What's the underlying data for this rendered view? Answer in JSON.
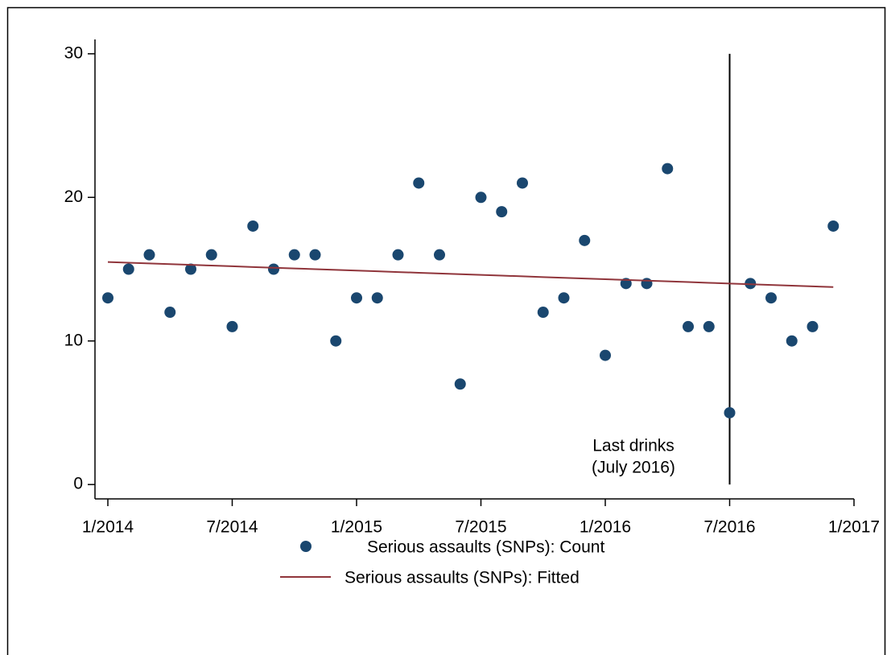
{
  "chart_data": {
    "type": "scatter",
    "x": [
      "2014-01",
      "2014-02",
      "2014-03",
      "2014-04",
      "2014-05",
      "2014-06",
      "2014-07",
      "2014-08",
      "2014-09",
      "2014-10",
      "2014-11",
      "2014-12",
      "2015-01",
      "2015-02",
      "2015-03",
      "2015-04",
      "2015-05",
      "2015-06",
      "2015-07",
      "2015-08",
      "2015-09",
      "2015-10",
      "2015-11",
      "2015-12",
      "2016-01",
      "2016-02",
      "2016-03",
      "2016-04",
      "2016-05",
      "2016-06",
      "2016-07",
      "2016-08",
      "2016-09",
      "2016-10",
      "2016-11",
      "2016-12"
    ],
    "series": [
      {
        "name": "Serious assaults (SNPs): Count",
        "type": "scatter",
        "color": "#1a476f",
        "values": [
          13,
          15,
          16,
          12,
          15,
          16,
          11,
          18,
          15,
          16,
          16,
          10,
          13,
          13,
          16,
          21,
          16,
          7,
          20,
          19,
          21,
          12,
          13,
          17,
          9,
          14,
          14,
          22,
          11,
          11,
          5,
          14,
          13,
          10,
          11,
          18
        ]
      },
      {
        "name": "Serious assaults (SNPs): Fitted",
        "type": "line",
        "color": "#90353b",
        "values": [
          15.5,
          15.45,
          15.4,
          15.35,
          15.3,
          15.25,
          15.2,
          15.15,
          15.1,
          15.05,
          15.0,
          14.95,
          14.9,
          14.85,
          14.8,
          14.75,
          14.7,
          14.65,
          14.6,
          14.55,
          14.5,
          14.45,
          14.4,
          14.35,
          14.3,
          14.25,
          14.2,
          14.15,
          14.1,
          14.05,
          14.0,
          13.95,
          13.9,
          13.85,
          13.8,
          13.75
        ]
      }
    ],
    "xlim": [
      "2014-01",
      "2017-01"
    ],
    "xticks": [
      {
        "value": "2014-01",
        "label": "1/2014"
      },
      {
        "value": "2014-07",
        "label": "7/2014"
      },
      {
        "value": "2015-01",
        "label": "1/2015"
      },
      {
        "value": "2015-07",
        "label": "7/2015"
      },
      {
        "value": "2016-01",
        "label": "1/2016"
      },
      {
        "value": "2016-07",
        "label": "7/2016"
      },
      {
        "value": "2017-01",
        "label": "1/2017"
      }
    ],
    "ylim": [
      -1,
      31
    ],
    "yticks": [
      0,
      10,
      20,
      30
    ],
    "reference_line": {
      "x": "2016-07",
      "ymin": 0,
      "ymax": 30,
      "color": "#000000"
    },
    "annotation": [
      "Last drinks",
      "(July 2016)"
    ],
    "legend": "bottom"
  }
}
